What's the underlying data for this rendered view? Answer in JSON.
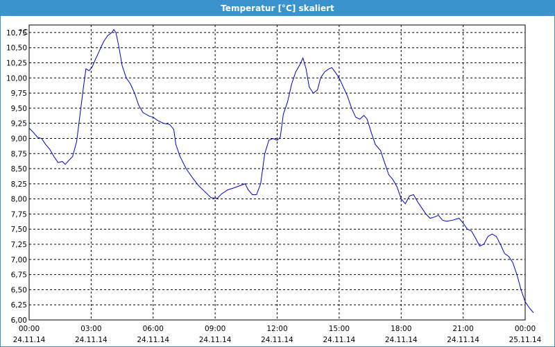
{
  "window": {
    "title": "Temperatur [°C] skaliert"
  },
  "colors": {
    "title_bar": "#3a93cc",
    "series": "#0000c8",
    "grid": "#000000"
  },
  "chart_data": {
    "type": "line",
    "title": "Temperatur [°C] skaliert",
    "ylabel": "°C",
    "xlabel": "",
    "ylim": [
      6.0,
      10.875
    ],
    "xlim": [
      0,
      24
    ],
    "grid": true,
    "legend": "none",
    "yticks": [
      "6,00",
      "6,25",
      "6,50",
      "6,75",
      "7,00",
      "7,25",
      "7,50",
      "7,75",
      "8,00",
      "8,25",
      "8,50",
      "8,75",
      "9,00",
      "9,25",
      "9,50",
      "9,75",
      "10,00",
      "10,25",
      "10,50",
      "10,75"
    ],
    "ytick_values": [
      6.0,
      6.25,
      6.5,
      6.75,
      7.0,
      7.25,
      7.5,
      7.75,
      8.0,
      8.25,
      8.5,
      8.75,
      9.0,
      9.25,
      9.5,
      9.75,
      10.0,
      10.25,
      10.5,
      10.75
    ],
    "xticks": [
      {
        "time": "00:00",
        "date": "24.11.14"
      },
      {
        "time": "03:00",
        "date": "24.11.14"
      },
      {
        "time": "06:00",
        "date": "24.11.14"
      },
      {
        "time": "09:00",
        "date": "24.11.14"
      },
      {
        "time": "12:00",
        "date": "24.11.14"
      },
      {
        "time": "15:00",
        "date": "24.11.14"
      },
      {
        "time": "18:00",
        "date": "24.11.14"
      },
      {
        "time": "21:00",
        "date": "24.11.14"
      },
      {
        "time": "00:00",
        "date": "25.11.14"
      }
    ],
    "xtick_hours": [
      0,
      3,
      6,
      9,
      12,
      15,
      18,
      21,
      24
    ],
    "series": [
      {
        "points": [
          [
            0.0,
            9.17
          ],
          [
            0.2,
            9.1
          ],
          [
            0.4,
            9.02
          ],
          [
            0.6,
            9.0
          ],
          [
            0.8,
            8.9
          ],
          [
            1.0,
            8.82
          ],
          [
            1.2,
            8.7
          ],
          [
            1.4,
            8.6
          ],
          [
            1.6,
            8.62
          ],
          [
            1.75,
            8.57
          ],
          [
            1.9,
            8.63
          ],
          [
            2.1,
            8.7
          ],
          [
            2.3,
            8.95
          ],
          [
            2.5,
            9.5
          ],
          [
            2.65,
            9.9
          ],
          [
            2.75,
            10.15
          ],
          [
            2.9,
            10.12
          ],
          [
            3.05,
            10.18
          ],
          [
            3.2,
            10.3
          ],
          [
            3.4,
            10.45
          ],
          [
            3.6,
            10.6
          ],
          [
            3.8,
            10.7
          ],
          [
            4.0,
            10.75
          ],
          [
            4.1,
            10.8
          ],
          [
            4.2,
            10.75
          ],
          [
            4.35,
            10.5
          ],
          [
            4.5,
            10.2
          ],
          [
            4.7,
            10.0
          ],
          [
            4.9,
            9.9
          ],
          [
            5.1,
            9.75
          ],
          [
            5.3,
            9.55
          ],
          [
            5.5,
            9.43
          ],
          [
            5.8,
            9.37
          ],
          [
            6.0,
            9.35
          ],
          [
            6.2,
            9.3
          ],
          [
            6.5,
            9.25
          ],
          [
            6.8,
            9.23
          ],
          [
            7.0,
            9.15
          ],
          [
            7.1,
            8.9
          ],
          [
            7.3,
            8.7
          ],
          [
            7.6,
            8.5
          ],
          [
            7.9,
            8.35
          ],
          [
            8.2,
            8.22
          ],
          [
            8.5,
            8.12
          ],
          [
            8.8,
            8.02
          ],
          [
            9.1,
            8.01
          ],
          [
            9.3,
            8.08
          ],
          [
            9.6,
            8.15
          ],
          [
            9.9,
            8.18
          ],
          [
            10.2,
            8.22
          ],
          [
            10.45,
            8.25
          ],
          [
            10.6,
            8.15
          ],
          [
            10.8,
            8.07
          ],
          [
            11.0,
            8.07
          ],
          [
            11.2,
            8.25
          ],
          [
            11.4,
            8.75
          ],
          [
            11.6,
            8.97
          ],
          [
            11.8,
            9.0
          ],
          [
            12.0,
            8.97
          ],
          [
            12.15,
            9.02
          ],
          [
            12.3,
            9.4
          ],
          [
            12.5,
            9.6
          ],
          [
            12.7,
            9.9
          ],
          [
            12.9,
            10.1
          ],
          [
            13.1,
            10.22
          ],
          [
            13.25,
            10.33
          ],
          [
            13.4,
            10.15
          ],
          [
            13.55,
            9.85
          ],
          [
            13.75,
            9.75
          ],
          [
            13.95,
            9.8
          ],
          [
            14.1,
            10.0
          ],
          [
            14.3,
            10.1
          ],
          [
            14.5,
            10.15
          ],
          [
            14.65,
            10.17
          ],
          [
            14.8,
            10.1
          ],
          [
            15.0,
            10.0
          ],
          [
            15.2,
            9.85
          ],
          [
            15.4,
            9.7
          ],
          [
            15.6,
            9.5
          ],
          [
            15.8,
            9.35
          ],
          [
            16.0,
            9.32
          ],
          [
            16.2,
            9.38
          ],
          [
            16.35,
            9.32
          ],
          [
            16.55,
            9.1
          ],
          [
            16.75,
            8.9
          ],
          [
            17.0,
            8.8
          ],
          [
            17.2,
            8.6
          ],
          [
            17.4,
            8.4
          ],
          [
            17.6,
            8.32
          ],
          [
            17.8,
            8.2
          ],
          [
            18.0,
            8.0
          ],
          [
            18.2,
            7.92
          ],
          [
            18.4,
            8.05
          ],
          [
            18.6,
            8.07
          ],
          [
            18.8,
            7.95
          ],
          [
            19.0,
            7.85
          ],
          [
            19.2,
            7.75
          ],
          [
            19.4,
            7.68
          ],
          [
            19.6,
            7.7
          ],
          [
            19.8,
            7.73
          ],
          [
            20.0,
            7.65
          ],
          [
            20.2,
            7.63
          ],
          [
            20.5,
            7.65
          ],
          [
            20.8,
            7.68
          ],
          [
            21.0,
            7.6
          ],
          [
            21.2,
            7.5
          ],
          [
            21.4,
            7.47
          ],
          [
            21.6,
            7.35
          ],
          [
            21.8,
            7.22
          ],
          [
            22.0,
            7.25
          ],
          [
            22.2,
            7.38
          ],
          [
            22.4,
            7.42
          ],
          [
            22.6,
            7.38
          ],
          [
            22.8,
            7.25
          ],
          [
            23.0,
            7.1
          ],
          [
            23.2,
            7.05
          ],
          [
            23.4,
            6.95
          ],
          [
            23.6,
            6.75
          ],
          [
            23.8,
            6.5
          ],
          [
            24.0,
            6.3
          ],
          [
            24.2,
            6.2
          ],
          [
            24.4,
            6.12
          ]
        ]
      }
    ]
  }
}
